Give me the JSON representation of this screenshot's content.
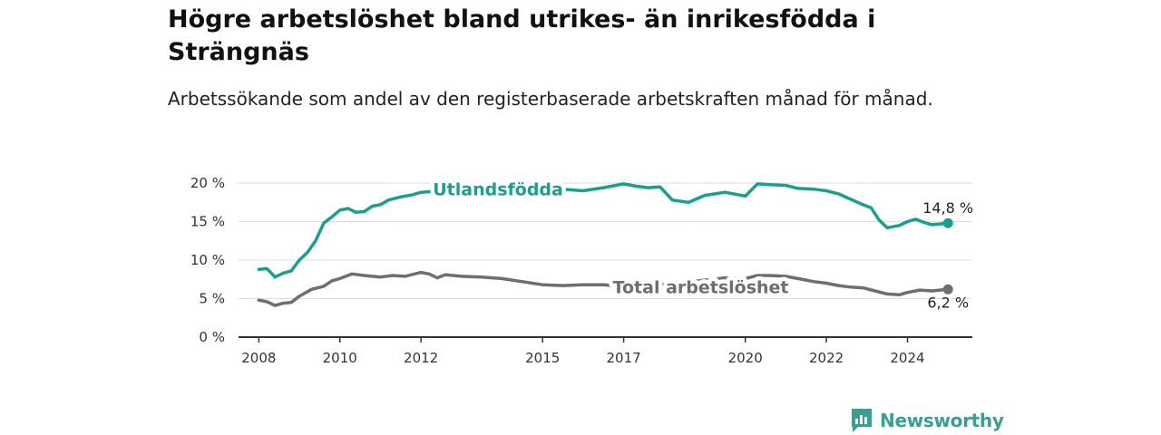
{
  "header": {
    "title": "Högre arbetslöshet bland utrikes- än inrikesfödda i Strängnäs",
    "subtitle": "Arbetssökande som andel av den registerbaserade arbetskraften månad för månad."
  },
  "brand": {
    "name": "Newsworthy",
    "icon": "newsworthy-chart-logo-icon",
    "color": "#3a9e92"
  },
  "chart_data": {
    "type": "line",
    "x_unit": "year",
    "xlim": [
      2007.5,
      2025.6
    ],
    "ylim": [
      0,
      20
    ],
    "x_ticks": [
      "2008",
      "2010",
      "2012",
      "2015",
      "2017",
      "2020",
      "2022",
      "2024"
    ],
    "y_ticks": [
      "0 %",
      "5 %",
      "10 %",
      "15 %",
      "20 %"
    ],
    "grid": "horizontal",
    "legend": "inline labels",
    "series": [
      {
        "name": "Utlandsfödda",
        "color": "#1a9e90",
        "end_label": "14,8 %",
        "x": [
          2008.0,
          2008.2,
          2008.4,
          2008.6,
          2008.8,
          2009.0,
          2009.2,
          2009.4,
          2009.6,
          2009.8,
          2010.0,
          2010.2,
          2010.4,
          2010.6,
          2010.8,
          2011.0,
          2011.2,
          2011.5,
          2011.8,
          2012.0,
          2012.3,
          2012.6,
          2013.0,
          2013.5,
          2014.0,
          2014.5,
          2015.0,
          2015.5,
          2016.0,
          2016.5,
          2017.0,
          2017.3,
          2017.6,
          2017.9,
          2018.2,
          2018.6,
          2019.0,
          2019.5,
          2020.0,
          2020.3,
          2020.6,
          2021.0,
          2021.3,
          2021.7,
          2022.0,
          2022.3,
          2022.6,
          2022.9,
          2023.1,
          2023.3,
          2023.5,
          2023.8,
          2024.0,
          2024.2,
          2024.4,
          2024.6,
          2024.8,
          2025.0
        ],
        "values": [
          8.8,
          8.9,
          7.8,
          8.3,
          8.6,
          10.0,
          11.0,
          12.5,
          14.8,
          15.6,
          16.5,
          16.7,
          16.2,
          16.3,
          17.0,
          17.2,
          17.8,
          18.2,
          18.5,
          18.8,
          18.9,
          19.0,
          19.2,
          19.3,
          19.4,
          19.3,
          18.9,
          19.2,
          19.0,
          19.4,
          19.9,
          19.6,
          19.4,
          19.5,
          17.8,
          17.5,
          18.4,
          18.8,
          18.3,
          19.9,
          19.8,
          19.7,
          19.3,
          19.2,
          19.0,
          18.6,
          17.9,
          17.2,
          16.8,
          15.2,
          14.2,
          14.5,
          15.0,
          15.3,
          14.9,
          14.6,
          14.7,
          14.8
        ]
      },
      {
        "name": "Total arbetslöshet",
        "color": "#6e6c74",
        "end_label": "6,2 %",
        "x": [
          2008.0,
          2008.2,
          2008.4,
          2008.6,
          2008.8,
          2009.0,
          2009.3,
          2009.6,
          2009.8,
          2010.0,
          2010.3,
          2010.6,
          2011.0,
          2011.3,
          2011.6,
          2012.0,
          2012.2,
          2012.4,
          2012.6,
          2013.0,
          2013.5,
          2014.0,
          2014.5,
          2015.0,
          2015.5,
          2016.0,
          2016.5,
          2017.0,
          2017.5,
          2018.0,
          2018.5,
          2019.0,
          2019.5,
          2020.0,
          2020.3,
          2020.6,
          2021.0,
          2021.3,
          2021.7,
          2022.0,
          2022.3,
          2022.6,
          2022.9,
          2023.2,
          2023.5,
          2023.8,
          2024.0,
          2024.3,
          2024.6,
          2025.0
        ],
        "values": [
          4.8,
          4.6,
          4.1,
          4.4,
          4.5,
          5.3,
          6.2,
          6.6,
          7.3,
          7.6,
          8.2,
          8.0,
          7.8,
          8.0,
          7.9,
          8.4,
          8.2,
          7.7,
          8.1,
          7.9,
          7.8,
          7.6,
          7.2,
          6.8,
          6.7,
          6.8,
          6.8,
          6.6,
          6.8,
          6.9,
          7.1,
          7.4,
          7.7,
          7.6,
          8.0,
          8.0,
          7.9,
          7.6,
          7.2,
          7.0,
          6.7,
          6.5,
          6.4,
          6.0,
          5.6,
          5.5,
          5.8,
          6.1,
          6.0,
          6.2
        ]
      }
    ]
  }
}
